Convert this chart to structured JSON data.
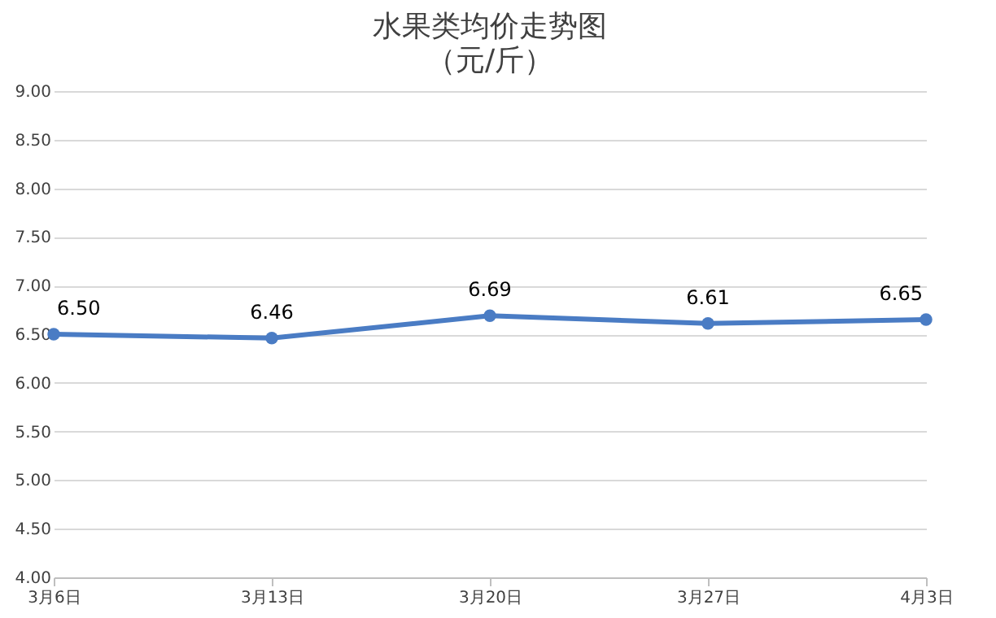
{
  "chart_data": {
    "type": "line",
    "title": "水果类均价走势图",
    "subtitle": "（元/斤）",
    "categories": [
      "3月6日",
      "3月13日",
      "3月20日",
      "3月27日",
      "4月3日"
    ],
    "series": [
      {
        "color": "#4a7cc4",
        "values": [
          6.5,
          6.46,
          6.69,
          6.61,
          6.65
        ],
        "value_labels": [
          "6.50",
          "6.46",
          "6.69",
          "6.61",
          "6.65"
        ]
      }
    ],
    "ylim": [
      4,
      9
    ],
    "yticks": [
      {
        "value": 4,
        "label": "4.00"
      },
      {
        "value": 4.5,
        "label": "4.50"
      },
      {
        "value": 5,
        "label": "5.00"
      },
      {
        "value": 5.5,
        "label": "5.50"
      },
      {
        "value": 6,
        "label": "6.00"
      },
      {
        "value": 6.5,
        "label": "6.50"
      },
      {
        "value": 7,
        "label": "7.00"
      },
      {
        "value": 7.5,
        "label": "7.50"
      },
      {
        "value": 8,
        "label": "8.00"
      },
      {
        "value": 8.5,
        "label": "8.50"
      },
      {
        "value": 9,
        "label": "9.00"
      }
    ],
    "grid": "y",
    "marker": "circle",
    "line_style": "solid"
  }
}
